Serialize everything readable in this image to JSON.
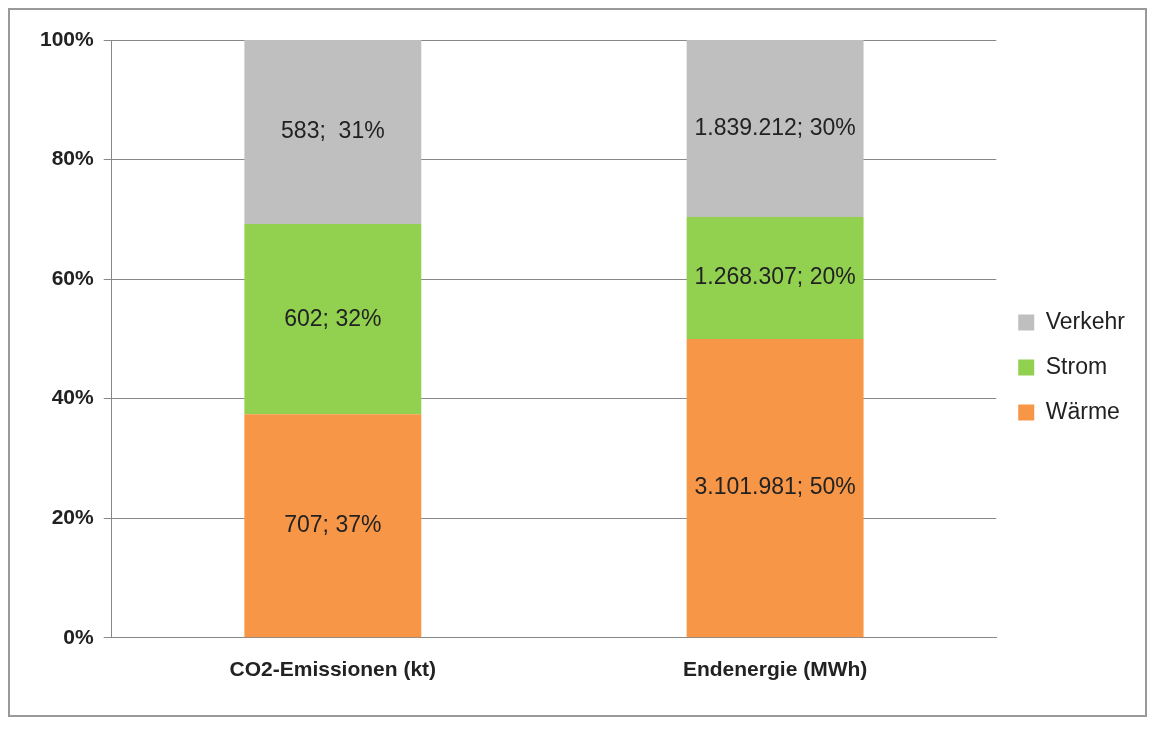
{
  "chart_data": {
    "type": "bar",
    "stacked": true,
    "categories": [
      "CO2-Emissionen (kt)",
      "Endenergie (MWh)"
    ],
    "series": [
      {
        "name": "Wärme",
        "color": "#f79646",
        "values": [
          37.4,
          50.0
        ],
        "value_labels": [
          "707; 37%",
          "3.101.981; 50%"
        ]
      },
      {
        "name": "Strom",
        "color": "#92d050",
        "values": [
          31.8,
          20.4
        ],
        "value_labels": [
          "602; 32%",
          "1.268.307; 20%"
        ]
      },
      {
        "name": "Verkehr",
        "color": "#bfbfbf",
        "values": [
          30.8,
          29.6
        ],
        "value_labels": [
          "583;  31%",
          "1.839.212; 30%"
        ]
      }
    ],
    "ylim": [
      0,
      100
    ],
    "yticks": [
      {
        "value": 0,
        "label": "0%"
      },
      {
        "value": 20,
        "label": "20%"
      },
      {
        "value": 40,
        "label": "40%"
      },
      {
        "value": 60,
        "label": "60%"
      },
      {
        "value": 80,
        "label": "80%"
      },
      {
        "value": 100,
        "label": "100%"
      }
    ],
    "grid": "y",
    "legend": "right"
  }
}
